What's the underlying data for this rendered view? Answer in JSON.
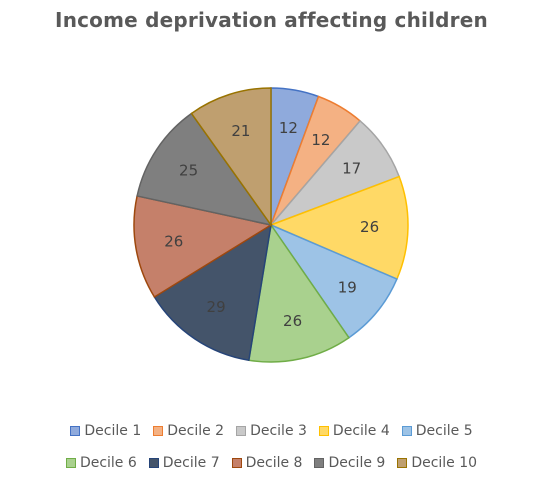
{
  "chart_data": {
    "type": "pie",
    "title": "Income deprivation affecting children",
    "categories": [
      "Decile 1",
      "Decile 2",
      "Decile 3",
      "Decile 4",
      "Decile 5",
      "Decile 6",
      "Decile 7",
      "Decile 8",
      "Decile 9",
      "Decile 10"
    ],
    "values": [
      12,
      12,
      17,
      26,
      19,
      26,
      29,
      26,
      25,
      21
    ],
    "colors": [
      "#8FAADC",
      "#F4B183",
      "#C9C9C9",
      "#FFD966",
      "#9DC3E6",
      "#A9D18E",
      "#44546A",
      "#C5806A",
      "#7F7F7F",
      "#BF9F6F"
    ],
    "borders": [
      "#4472C4",
      "#ED7D31",
      "#A5A5A5",
      "#FFC000",
      "#5B9BD5",
      "#70AD47",
      "#264478",
      "#9E480E",
      "#636363",
      "#997300"
    ],
    "legend_position": "bottom"
  }
}
